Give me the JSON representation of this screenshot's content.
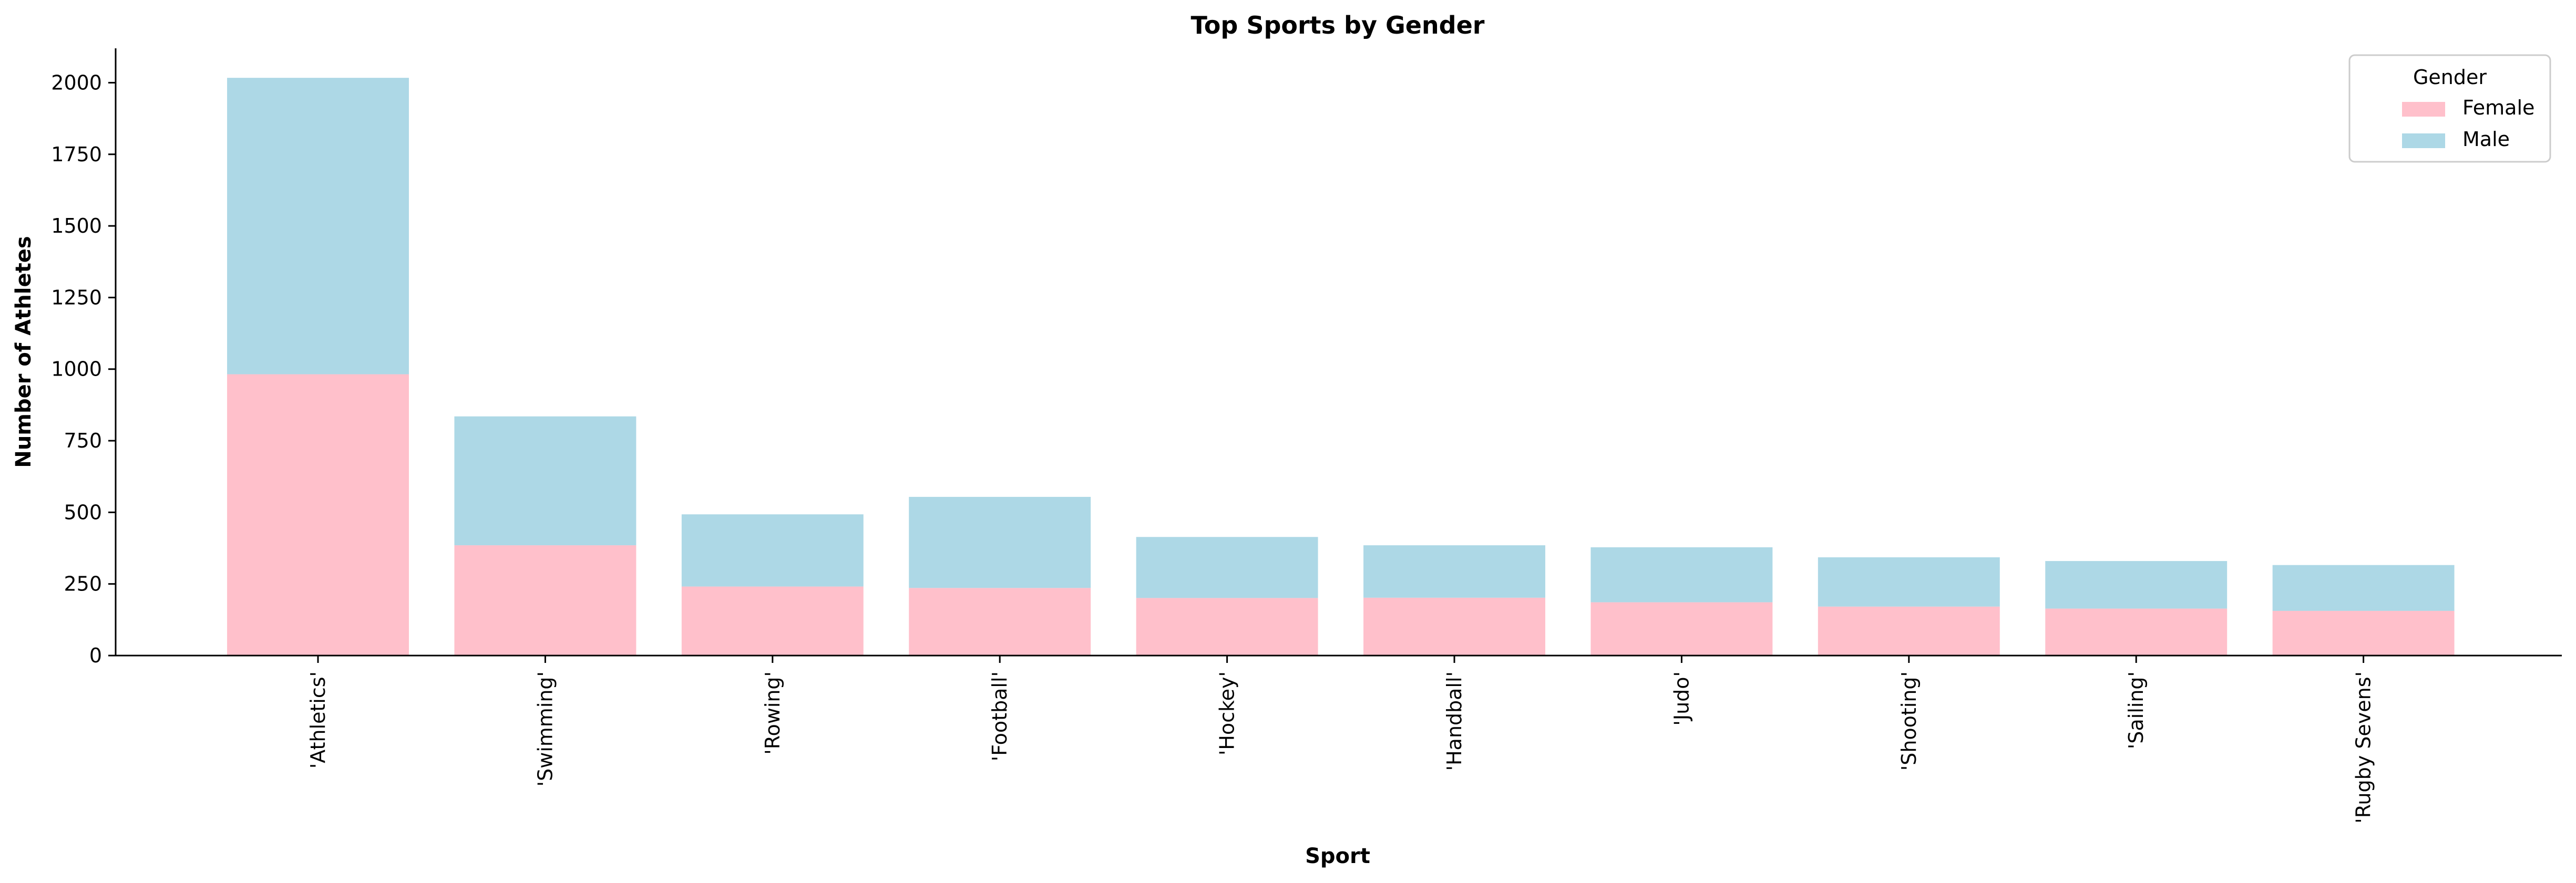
{
  "chart_data": {
    "type": "bar",
    "stacked": true,
    "title": "Top Sports by Gender",
    "xlabel": "Sport",
    "ylabel": "Number of Athletes",
    "categories": [
      "'Athletics'",
      "'Swimming'",
      "'Rowing'",
      "'Football'",
      "'Hockey'",
      "'Handball'",
      "'Judo'",
      "'Shooting'",
      "'Sailing'",
      "'Rugby Sevens'"
    ],
    "series": [
      {
        "name": "Female",
        "color": "#ffc0cb",
        "values": [
          982,
          385,
          241,
          236,
          201,
          202,
          186,
          171,
          164,
          156
        ]
      },
      {
        "name": "Male",
        "color": "#add8e6",
        "values": [
          1035,
          450,
          252,
          318,
          213,
          183,
          192,
          172,
          166,
          160
        ]
      }
    ],
    "ylim": [
      0,
      2120
    ],
    "yticks": [
      0,
      250,
      500,
      750,
      1000,
      1250,
      1500,
      1750,
      2000
    ],
    "legend": {
      "title": "Gender",
      "position": "top-right"
    },
    "grid": false
  }
}
